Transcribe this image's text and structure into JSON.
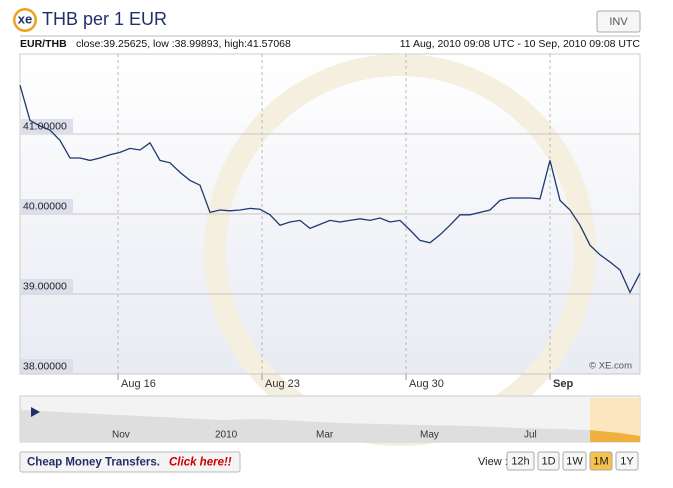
{
  "chart_data": {
    "type": "line",
    "title": "THB per 1 EUR",
    "pair": "EUR/THB",
    "stats": "close:39.25625, low :38.99893, high:41.57068",
    "range": "11 Aug, 2010 09:08 UTC - 10 Sep, 2010 09:08 UTC",
    "credit": "© XE.com",
    "color": "#1e3a6e",
    "values": [
      41.61,
      41.17,
      41.1,
      41.05,
      40.92,
      40.7,
      40.7,
      40.67,
      40.7,
      40.74,
      40.77,
      40.82,
      40.8,
      40.89,
      40.67,
      40.64,
      40.52,
      40.42,
      40.36,
      40.02,
      40.05,
      40.04,
      40.05,
      40.07,
      40.06,
      39.99,
      39.86,
      39.9,
      39.92,
      39.82,
      39.87,
      39.92,
      39.9,
      39.92,
      39.94,
      39.92,
      39.95,
      39.9,
      39.92,
      39.8,
      39.67,
      39.64,
      39.74,
      39.86,
      39.99,
      39.99,
      40.02,
      40.05,
      40.17,
      40.2,
      40.2,
      40.2,
      40.19,
      40.67,
      40.17,
      40.05,
      39.86,
      39.61,
      39.49,
      39.4,
      39.3,
      39.02,
      39.26
    ],
    "xlim": [
      0,
      62
    ],
    "xticks": [
      {
        "value": 9.8,
        "label": "Aug 16"
      },
      {
        "value": 24.2,
        "label": "Aug 23"
      },
      {
        "value": 38.6,
        "label": "Aug 30"
      },
      {
        "value": 53.0,
        "label": "Sep"
      }
    ],
    "ylim": [
      38,
      42
    ],
    "yticks": [
      {
        "value": 38,
        "label": "38.00000"
      },
      {
        "value": 39,
        "label": "39.00000"
      },
      {
        "value": 40,
        "label": "40.00000"
      },
      {
        "value": 41,
        "label": "41.00000"
      }
    ],
    "grid": true
  },
  "ui": {
    "logo": "xe",
    "invert": "INV",
    "navigator": [
      "Nov",
      "2010",
      "Mar",
      "May",
      "Jul"
    ],
    "promo": "Cheap Money Transfers.",
    "promo_link": "Click here!!",
    "view_label": "View :",
    "views": [
      "12h",
      "1D",
      "1W",
      "1M",
      "1Y"
    ],
    "active_view": "1M"
  }
}
